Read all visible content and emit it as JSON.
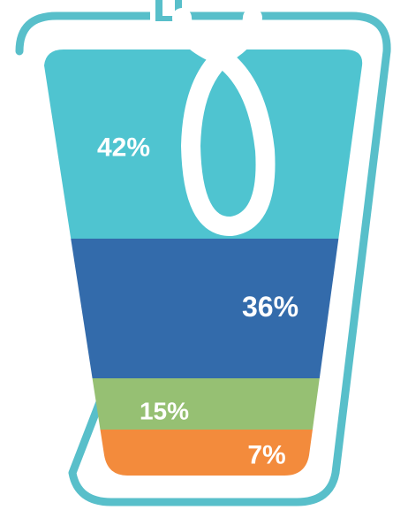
{
  "chart_data": {
    "type": "area",
    "title": "",
    "categories": [
      "",
      "",
      "",
      ""
    ],
    "values": [
      42,
      36,
      15,
      7
    ],
    "labels": [
      "42%",
      "36%",
      "15%",
      "7%"
    ],
    "unit": "%",
    "colors": [
      "#4FC4D0",
      "#336BAB",
      "#96C073",
      "#F38B3C"
    ],
    "outline_color": "#58BFCA",
    "icon": "cup-with-handle-loop",
    "legend": "none",
    "grid": false
  }
}
